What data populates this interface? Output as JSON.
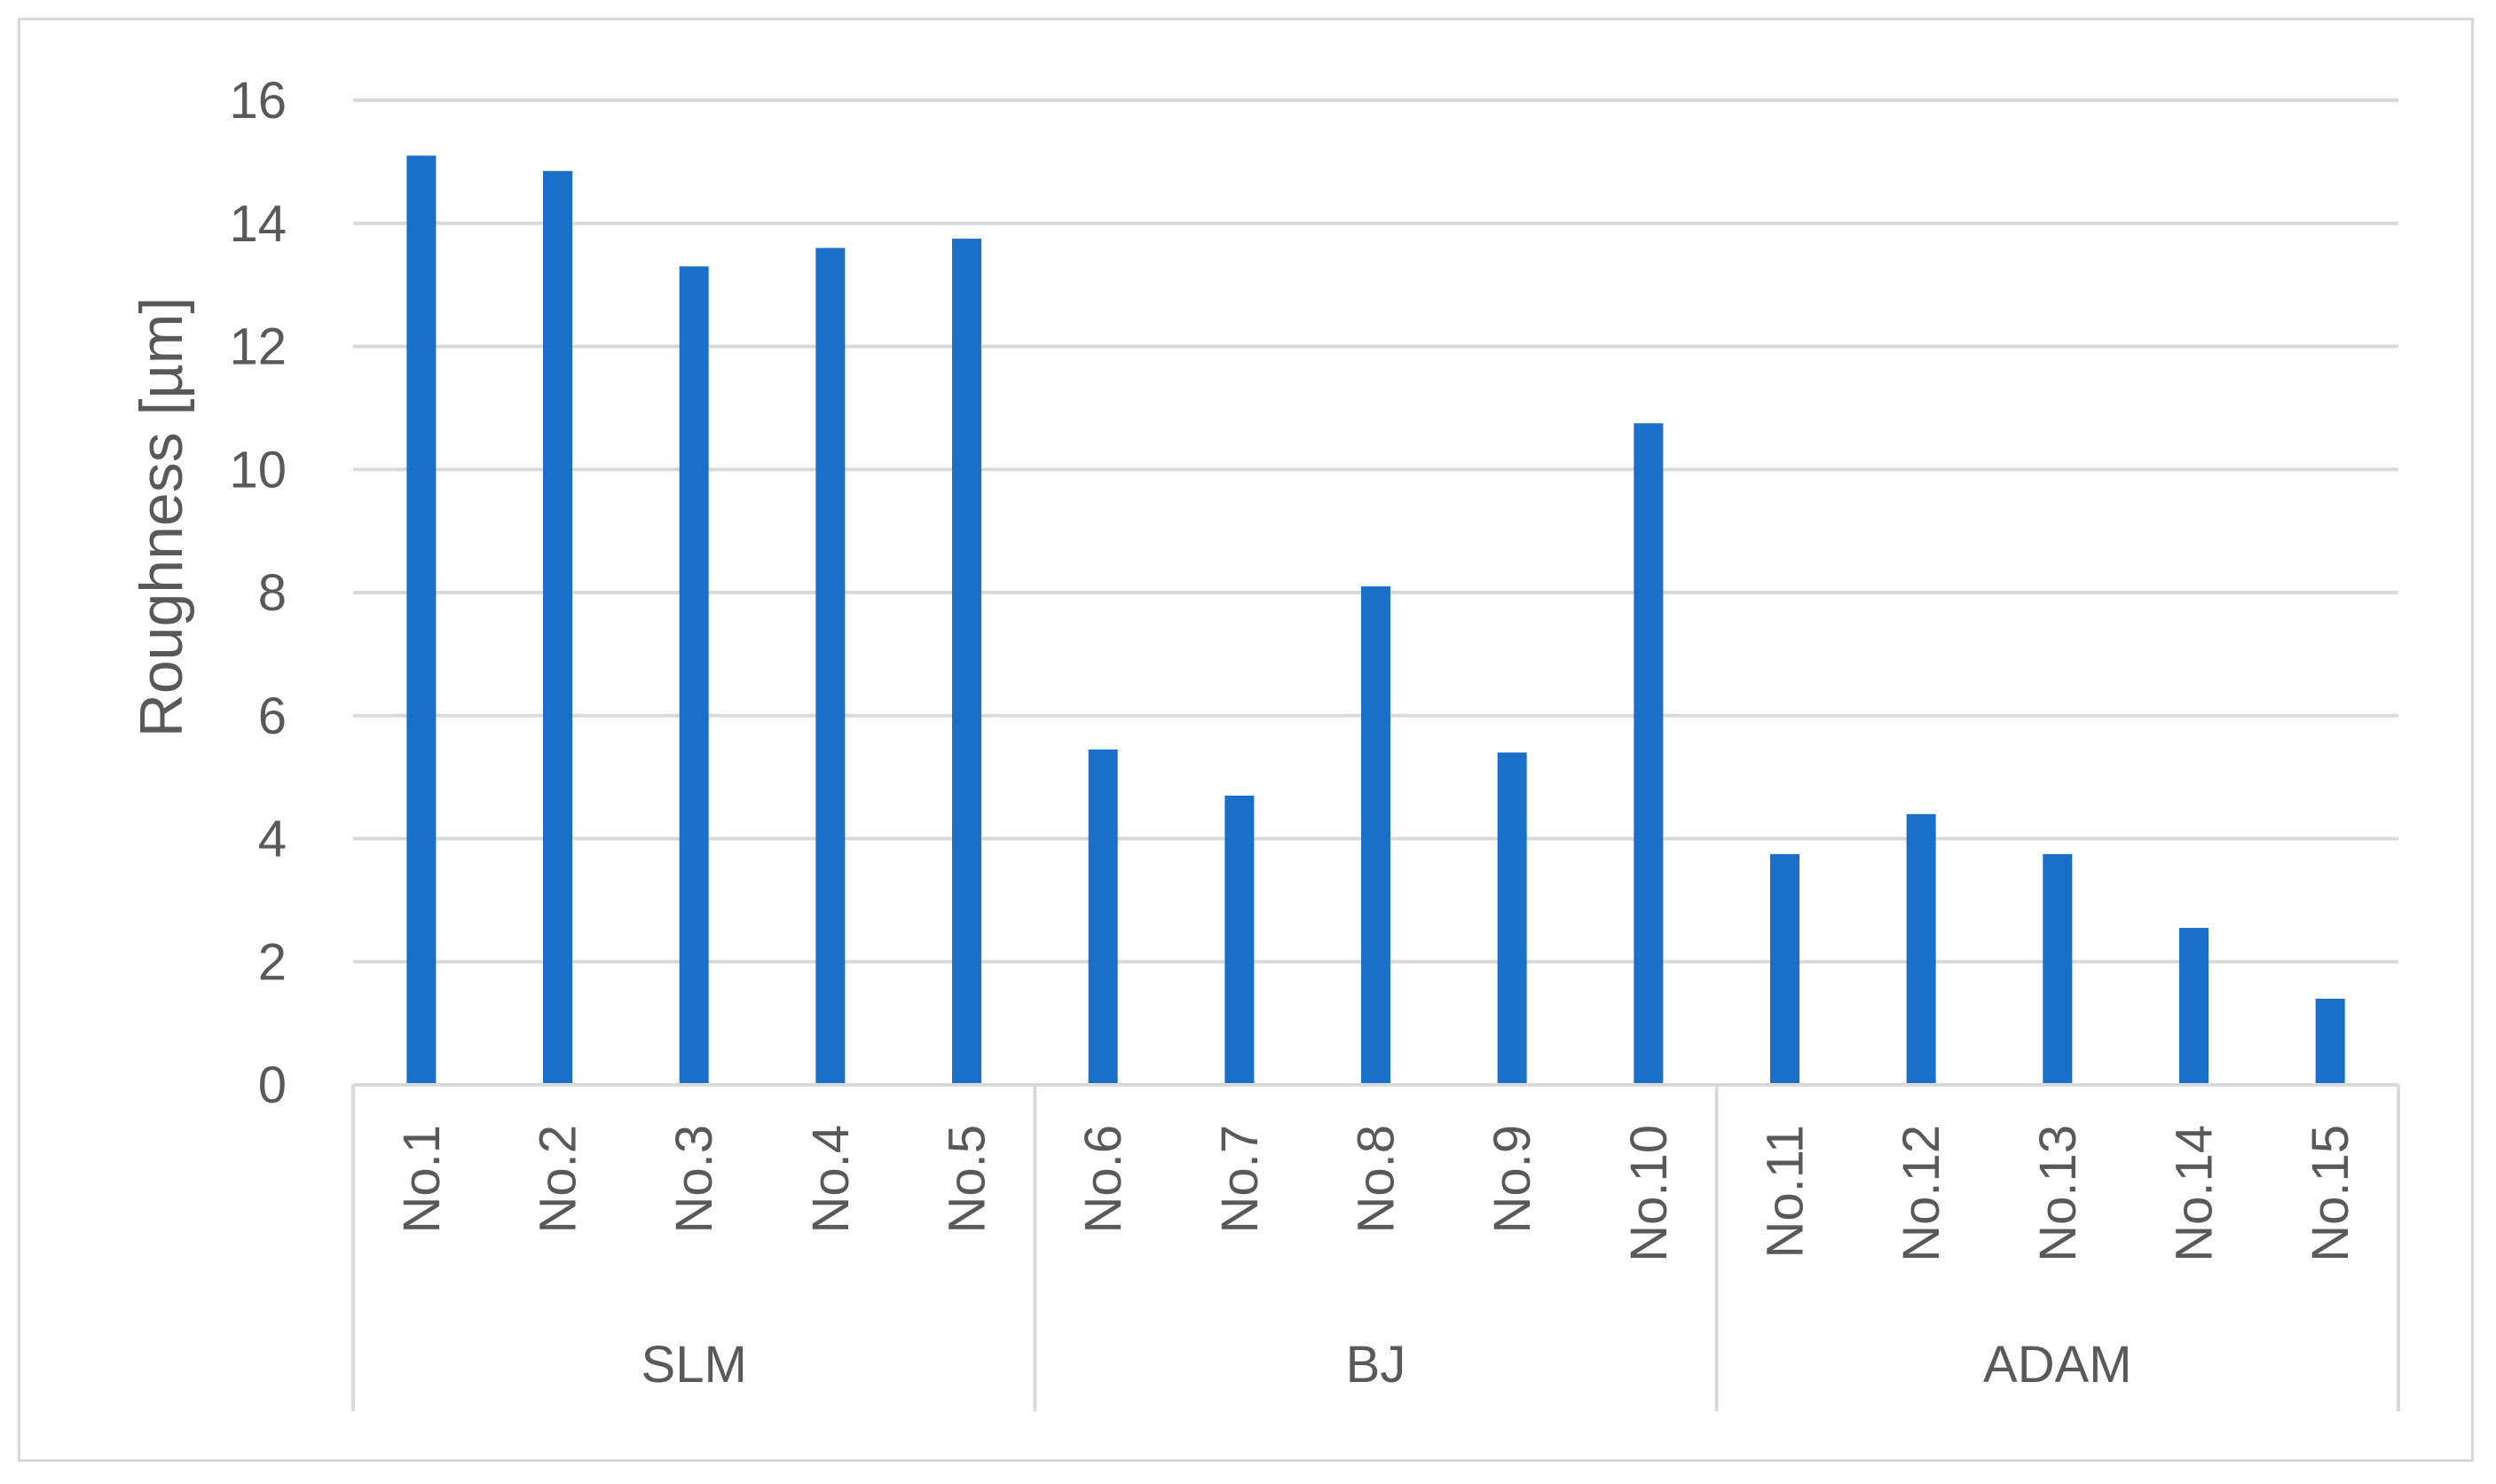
{
  "chart_data": {
    "type": "bar",
    "title": "",
    "xlabel": "",
    "ylabel": "Roughness [µm]",
    "ylim": [
      0,
      16
    ],
    "yticks": [
      0,
      2,
      4,
      6,
      8,
      10,
      12,
      14,
      16
    ],
    "grid": true,
    "bar_color": "#1a6fc8",
    "categories": [
      "No.1",
      "No.2",
      "No.3",
      "No.4",
      "No.5",
      "No.6",
      "No.7",
      "No.8",
      "No.9",
      "No.10",
      "No.11",
      "No.12",
      "No.13",
      "No.14",
      "No.15"
    ],
    "values": [
      15.1,
      14.85,
      13.3,
      13.6,
      13.75,
      5.45,
      4.7,
      8.1,
      5.4,
      10.75,
      3.75,
      4.4,
      3.75,
      2.55,
      1.4
    ],
    "groups": [
      {
        "label": "SLM",
        "count": 5
      },
      {
        "label": "BJ",
        "count": 5
      },
      {
        "label": "ADAM",
        "count": 5
      }
    ]
  }
}
